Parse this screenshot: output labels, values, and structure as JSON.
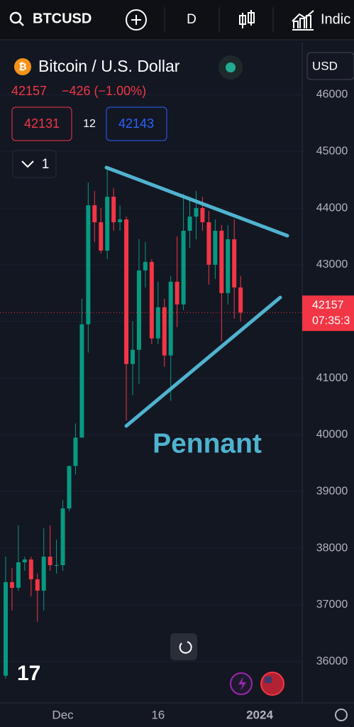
{
  "toolbar": {
    "symbol": "BTCUSD",
    "interval": "D",
    "indicators": "Indic"
  },
  "header": {
    "name": "Bitcoin / U.S. Dollar",
    "change": "−426 (−1.00%)",
    "bid": "42131",
    "spread": "12",
    "ask": "42143",
    "layers": "1",
    "currency": "USD",
    "countdown": "07:35:3"
  },
  "chart_data": {
    "type": "candlestick",
    "annotation": "Pennant",
    "categories": [
      null,
      null,
      null,
      null,
      null,
      null,
      null,
      null,
      null,
      "Dec",
      null,
      null,
      null,
      null,
      null,
      null,
      null,
      null,
      null,
      null,
      null,
      null,
      null,
      null,
      "16",
      null,
      null,
      null,
      null,
      null,
      null,
      null,
      null,
      null,
      null,
      null,
      null,
      null,
      null,
      null,
      "2024"
    ],
    "open": [
      35750,
      37400,
      37300,
      37750,
      37800,
      37450,
      37250,
      37850,
      37700,
      37700,
      38700,
      39450,
      39950,
      41950,
      44050,
      43750,
      43250,
      44200,
      43750,
      43800,
      41250,
      41500,
      42900,
      43050,
      41700,
      42250,
      41400,
      42700,
      42300,
      43600,
      43850,
      44000,
      43750,
      43000,
      43600,
      42500,
      43450,
      42600,
      null,
      null,
      null
    ],
    "high": [
      37850,
      37650,
      38400,
      37850,
      37850,
      37550,
      38350,
      38400,
      38150,
      38850,
      39450,
      40200,
      42400,
      44450,
      44300,
      44000,
      44700,
      44350,
      44050,
      43850,
      42000,
      43450,
      43400,
      43100,
      42700,
      42400,
      42800,
      43500,
      44250,
      44200,
      44300,
      44200,
      43950,
      43800,
      43700,
      43700,
      43800,
      42800,
      null,
      null,
      null
    ],
    "low": [
      35700,
      36900,
      37250,
      37600,
      37150,
      36700,
      36900,
      37600,
      37550,
      37600,
      38650,
      39300,
      39950,
      41450,
      43400,
      43200,
      43100,
      43600,
      43600,
      40250,
      40700,
      40900,
      42600,
      41600,
      41600,
      41200,
      40600,
      41900,
      42200,
      43300,
      43450,
      43600,
      42650,
      42750,
      41650,
      42300,
      42050,
      42000,
      null,
      null,
      null
    ],
    "close": [
      37400,
      37300,
      37750,
      37800,
      37450,
      37250,
      37850,
      37700,
      37700,
      38700,
      39450,
      39950,
      41950,
      44050,
      43750,
      43250,
      44200,
      43750,
      43800,
      41250,
      41500,
      42900,
      43050,
      41700,
      42250,
      41400,
      42700,
      42300,
      43600,
      43850,
      44000,
      43750,
      43000,
      43600,
      42500,
      43450,
      42600,
      42157,
      null,
      null,
      null
    ],
    "last_price": 42157,
    "up_color": "#089981",
    "down_color": "#f23645",
    "ylim": [
      35270,
      46920
    ],
    "yticks": [
      36000,
      37000,
      38000,
      39000,
      40000,
      41000,
      42000,
      43000,
      44000,
      45000,
      46000
    ],
    "grid": true
  }
}
